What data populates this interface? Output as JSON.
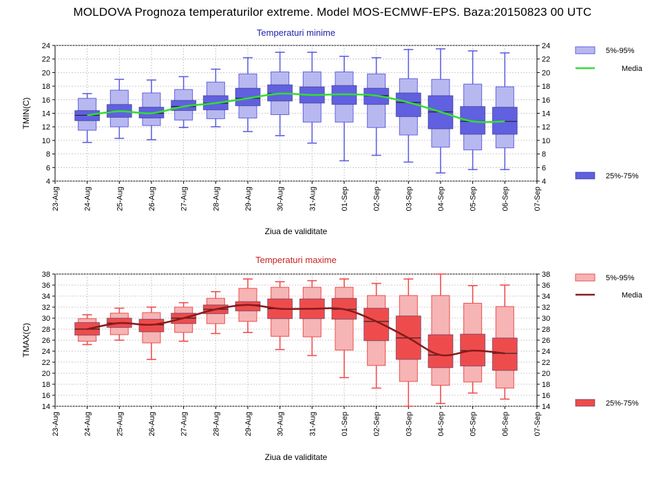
{
  "title": "MOLDOVA  Prognoza temperaturilor extreme.  Model MOS-ECMWF-EPS. Baza:20150823 00 UTC",
  "colors": {
    "tmin_box": "#6060e0",
    "tmin_whisker_box": "#b8b8f0",
    "tmin_line": "#33dd33",
    "tmin_title": "#2222aa",
    "tmax_box": "#ee4c4c",
    "tmax_whisker_box": "#f6b4b4",
    "tmax_line": "#8a1a1a",
    "tmax_title": "#cc2222"
  },
  "chart_data": [
    {
      "type": "box",
      "title": "Temperaturi minime",
      "xlabel": "Ziua de validitate",
      "ylabel": "TMIN(C)",
      "ylim": [
        4,
        24
      ],
      "yticks": [
        4,
        6,
        8,
        10,
        12,
        14,
        16,
        18,
        20,
        22,
        24
      ],
      "x_tick_labels": [
        "23-Aug",
        "24-Aug",
        "25-Aug",
        "26-Aug",
        "27-Aug",
        "28-Aug",
        "29-Aug",
        "30-Aug",
        "31-Aug",
        "01-Sep",
        "02-Sep",
        "03-Sep",
        "04-Sep",
        "05-Sep",
        "06-Sep",
        "07-Sep"
      ],
      "grid": true,
      "legend": {
        "placement": "right",
        "whisker_label": "5%-95%",
        "median_label": "Media",
        "box_label": "25%-75%"
      },
      "boxes": [
        {
          "date": "24-Aug",
          "min": 9.7,
          "p5": 11.5,
          "q1": 12.9,
          "median": 13.7,
          "q3": 14.4,
          "p95": 16.2,
          "max": 16.9
        },
        {
          "date": "25-Aug",
          "min": 10.3,
          "p5": 12.0,
          "q1": 13.4,
          "median": 14.3,
          "q3": 15.3,
          "p95": 17.4,
          "max": 19.0
        },
        {
          "date": "26-Aug",
          "min": 10.1,
          "p5": 12.2,
          "q1": 13.3,
          "median": 14.0,
          "q3": 14.9,
          "p95": 17.0,
          "max": 18.9
        },
        {
          "date": "27-Aug",
          "min": 11.9,
          "p5": 13.0,
          "q1": 14.4,
          "median": 15.0,
          "q3": 15.9,
          "p95": 17.5,
          "max": 19.4
        },
        {
          "date": "28-Aug",
          "min": 12.0,
          "p5": 13.2,
          "q1": 14.5,
          "median": 15.5,
          "q3": 16.6,
          "p95": 18.6,
          "max": 20.5
        },
        {
          "date": "29-Aug",
          "min": 11.3,
          "p5": 13.3,
          "q1": 15.1,
          "median": 16.2,
          "q3": 17.7,
          "p95": 19.8,
          "max": 22.2
        },
        {
          "date": "30-Aug",
          "min": 10.7,
          "p5": 13.8,
          "q1": 15.8,
          "median": 16.9,
          "q3": 18.2,
          "p95": 20.1,
          "max": 23.0
        },
        {
          "date": "31-Aug",
          "min": 9.6,
          "p5": 12.7,
          "q1": 15.5,
          "median": 16.7,
          "q3": 17.9,
          "p95": 20.1,
          "max": 23.0
        },
        {
          "date": "01-Sep",
          "min": 7.0,
          "p5": 12.7,
          "q1": 15.3,
          "median": 16.8,
          "q3": 18.1,
          "p95": 20.1,
          "max": 22.4
        },
        {
          "date": "02-Sep",
          "min": 7.8,
          "p5": 11.9,
          "q1": 15.3,
          "median": 16.6,
          "q3": 17.7,
          "p95": 19.8,
          "max": 22.2
        },
        {
          "date": "03-Sep",
          "min": 6.8,
          "p5": 10.8,
          "q1": 13.5,
          "median": 15.6,
          "q3": 17.0,
          "p95": 19.1,
          "max": 23.4
        },
        {
          "date": "04-Sep",
          "min": 5.2,
          "p5": 9.0,
          "q1": 11.7,
          "median": 14.2,
          "q3": 16.6,
          "p95": 19.0,
          "max": 23.5
        },
        {
          "date": "05-Sep",
          "min": 5.7,
          "p5": 8.6,
          "q1": 10.9,
          "median": 12.8,
          "q3": 15.0,
          "p95": 18.3,
          "max": 23.2
        },
        {
          "date": "06-Sep",
          "min": 5.7,
          "p5": 8.9,
          "q1": 10.9,
          "median": 12.8,
          "q3": 14.9,
          "p95": 17.9,
          "max": 22.9
        }
      ]
    },
    {
      "type": "box",
      "title": "Temperaturi maxime",
      "xlabel": "Ziua de validitate",
      "ylabel": "TMAX(C)",
      "ylim": [
        14,
        38
      ],
      "yticks": [
        14,
        16,
        18,
        20,
        22,
        24,
        26,
        28,
        30,
        32,
        34,
        36,
        38
      ],
      "x_tick_labels": [
        "23-Aug",
        "24-Aug",
        "25-Aug",
        "26-Aug",
        "27-Aug",
        "28-Aug",
        "29-Aug",
        "30-Aug",
        "31-Aug",
        "01-Sep",
        "02-Sep",
        "03-Sep",
        "04-Sep",
        "05-Sep",
        "06-Sep",
        "07-Sep"
      ],
      "grid": true,
      "legend": {
        "placement": "right",
        "whisker_label": "5%-95%",
        "median_label": "Media",
        "box_label": "25%-75%"
      },
      "boxes": [
        {
          "date": "24-Aug",
          "min": 25.2,
          "p5": 25.8,
          "q1": 26.9,
          "median": 28.0,
          "q3": 29.2,
          "p95": 29.9,
          "max": 30.6
        },
        {
          "date": "25-Aug",
          "min": 26.0,
          "p5": 27.0,
          "q1": 28.3,
          "median": 29.1,
          "q3": 30.0,
          "p95": 30.9,
          "max": 31.8
        },
        {
          "date": "26-Aug",
          "min": 22.5,
          "p5": 25.5,
          "q1": 27.5,
          "median": 28.8,
          "q3": 29.8,
          "p95": 31.0,
          "max": 32.0
        },
        {
          "date": "27-Aug",
          "min": 25.8,
          "p5": 27.4,
          "q1": 29.0,
          "median": 30.0,
          "q3": 30.9,
          "p95": 32.0,
          "max": 32.8
        },
        {
          "date": "28-Aug",
          "min": 27.2,
          "p5": 29.0,
          "q1": 30.8,
          "median": 31.6,
          "q3": 32.4,
          "p95": 33.6,
          "max": 34.8
        },
        {
          "date": "29-Aug",
          "min": 27.4,
          "p5": 29.4,
          "q1": 31.3,
          "median": 32.4,
          "q3": 33.0,
          "p95": 35.4,
          "max": 37.1
        },
        {
          "date": "30-Aug",
          "min": 24.3,
          "p5": 26.7,
          "q1": 29.9,
          "median": 31.7,
          "q3": 33.5,
          "p95": 35.6,
          "max": 36.6
        },
        {
          "date": "31-Aug",
          "min": 23.2,
          "p5": 26.6,
          "q1": 29.9,
          "median": 31.7,
          "q3": 33.5,
          "p95": 35.6,
          "max": 36.8
        },
        {
          "date": "01-Sep",
          "min": 19.2,
          "p5": 24.2,
          "q1": 29.8,
          "median": 31.6,
          "q3": 33.6,
          "p95": 35.6,
          "max": 37.1
        },
        {
          "date": "02-Sep",
          "min": 17.3,
          "p5": 21.4,
          "q1": 25.9,
          "median": 29.4,
          "q3": 31.8,
          "p95": 34.1,
          "max": 36.3
        },
        {
          "date": "03-Sep",
          "min": 14.0,
          "p5": 18.5,
          "q1": 22.5,
          "median": 26.4,
          "q3": 30.4,
          "p95": 34.1,
          "max": 37.1
        },
        {
          "date": "04-Sep",
          "min": 14.5,
          "p5": 17.8,
          "q1": 21.0,
          "median": 23.3,
          "q3": 27.0,
          "p95": 34.1,
          "max": 38.0
        },
        {
          "date": "05-Sep",
          "min": 16.4,
          "p5": 18.4,
          "q1": 21.3,
          "median": 24.1,
          "q3": 27.1,
          "p95": 32.7,
          "max": 35.9
        },
        {
          "date": "06-Sep",
          "min": 15.3,
          "p5": 17.3,
          "q1": 20.5,
          "median": 23.6,
          "q3": 26.4,
          "p95": 32.1,
          "max": 36.0
        }
      ]
    }
  ]
}
